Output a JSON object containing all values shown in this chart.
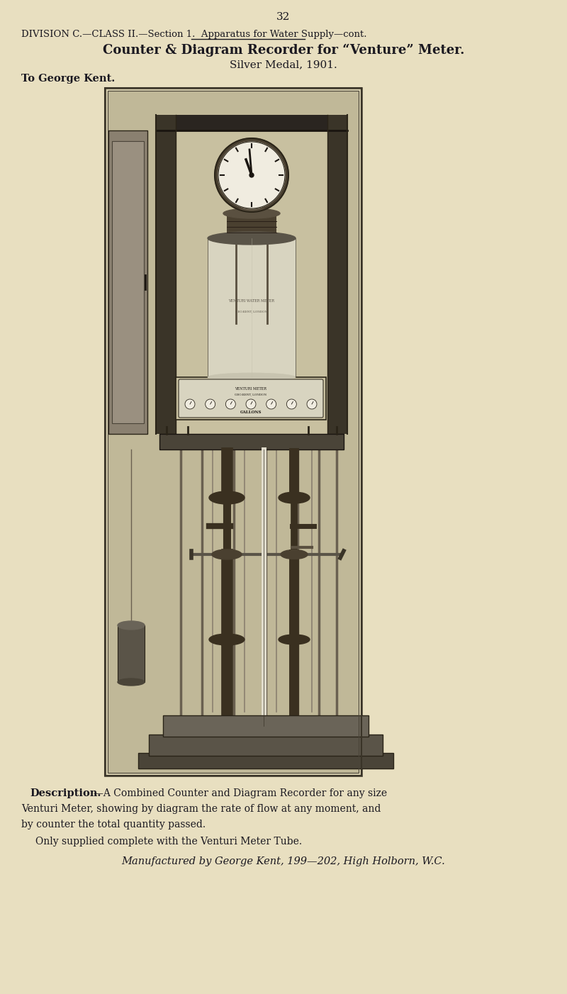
{
  "bg_color": "#e8dfc0",
  "page_number": "32",
  "division_line": "DIVISION C.—CLASS II.—Section 1.  Apparatus for Water Supply—cont.",
  "title_line1": "Counter & Diagram Recorder for “Venture” Meter.",
  "title_line2": "Silver Medal, 1901.",
  "award_line": "To George Kent.",
  "desc_label": "Description.",
  "desc1": "—A Combined Counter and Diagram Recorder for any size",
  "desc2": "Venturi Meter, showing by diagram the rate of flow at any moment, and",
  "desc3": "by counter the total quantity passed.",
  "desc4": "Only supplied complete with the Venturi Meter Tube.",
  "desc5": "Manufactured by George Kent, 199—202, High Holborn, W.C.",
  "text_color": "#1a1820",
  "photo_bg": "#c8c0a0",
  "photo_shadow": "#6a6458",
  "photo_dark": "#3a3530",
  "photo_mid": "#7a7060",
  "photo_light": "#d8d0b8",
  "photo_white": "#e8e4d8",
  "frame_bg": "#d0c8a8"
}
